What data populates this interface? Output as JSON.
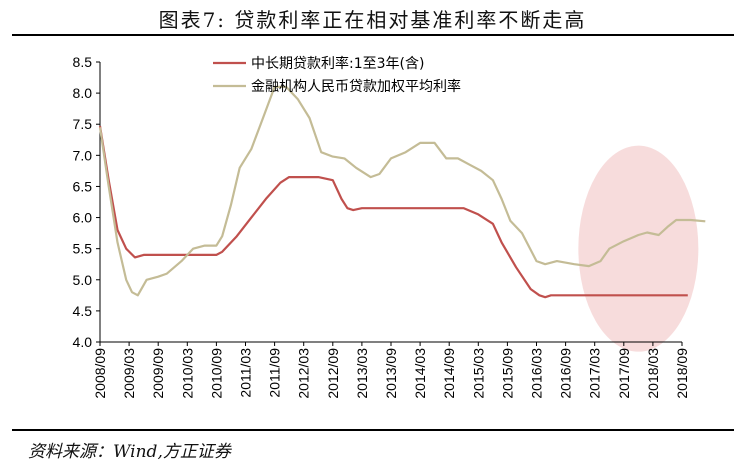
{
  "title": "图表7:  贷款利率正在相对基准利率不断走高",
  "source": "资料来源：Wind,方正证券",
  "chart_data": {
    "type": "line",
    "ylim": [
      4.0,
      8.5
    ],
    "yticks": [
      "8.5",
      "8.0",
      "7.5",
      "7.0",
      "6.5",
      "6.0",
      "5.5",
      "5.0",
      "4.5",
      "4.0"
    ],
    "xticks": [
      "2008/09",
      "2009/03",
      "2009/09",
      "2010/03",
      "2010/09",
      "2011/03",
      "2011/09",
      "2012/03",
      "2012/09",
      "2013/03",
      "2013/09",
      "2014/03",
      "2014/09",
      "2015/03",
      "2015/09",
      "2016/03",
      "2016/09",
      "2017/03",
      "2017/09",
      "2018/03",
      "2018/09"
    ],
    "legend_position": "top-center",
    "highlight": {
      "shape": "ellipse",
      "color": "#f6d6d6",
      "x_center": 18.5,
      "y_center": 5.5
    },
    "series": [
      {
        "name": "中长期贷款利率:1至3年(含)",
        "color": "#c0504d",
        "points": [
          [
            0,
            7.47
          ],
          [
            0.3,
            6.6
          ],
          [
            0.6,
            5.8
          ],
          [
            0.9,
            5.5
          ],
          [
            1.2,
            5.36
          ],
          [
            1.5,
            5.4
          ],
          [
            2,
            5.4
          ],
          [
            3,
            5.4
          ],
          [
            3.5,
            5.4
          ],
          [
            4,
            5.4
          ],
          [
            4.2,
            5.45
          ],
          [
            4.7,
            5.7
          ],
          [
            5.2,
            6.0
          ],
          [
            5.7,
            6.3
          ],
          [
            6.2,
            6.56
          ],
          [
            6.5,
            6.65
          ],
          [
            7,
            6.65
          ],
          [
            7.5,
            6.65
          ],
          [
            8,
            6.6
          ],
          [
            8.3,
            6.3
          ],
          [
            8.5,
            6.15
          ],
          [
            8.7,
            6.12
          ],
          [
            9,
            6.15
          ],
          [
            10,
            6.15
          ],
          [
            11,
            6.15
          ],
          [
            12,
            6.15
          ],
          [
            12.5,
            6.15
          ],
          [
            13,
            6.05
          ],
          [
            13.5,
            5.9
          ],
          [
            13.8,
            5.6
          ],
          [
            14.3,
            5.2
          ],
          [
            14.8,
            4.85
          ],
          [
            15.1,
            4.75
          ],
          [
            15.3,
            4.72
          ],
          [
            15.5,
            4.75
          ],
          [
            16,
            4.75
          ],
          [
            17,
            4.75
          ],
          [
            18,
            4.75
          ],
          [
            19,
            4.75
          ],
          [
            20,
            4.75
          ],
          [
            20.2,
            4.75
          ]
        ]
      },
      {
        "name": "金融机构人民币贷款加权平均利率",
        "color": "#c4bc96",
        "points": [
          [
            0,
            7.45
          ],
          [
            0.3,
            6.5
          ],
          [
            0.6,
            5.6
          ],
          [
            0.9,
            5.0
          ],
          [
            1.1,
            4.8
          ],
          [
            1.3,
            4.75
          ],
          [
            1.6,
            5.0
          ],
          [
            2,
            5.05
          ],
          [
            2.3,
            5.1
          ],
          [
            2.8,
            5.3
          ],
          [
            3.2,
            5.5
          ],
          [
            3.6,
            5.55
          ],
          [
            4,
            5.55
          ],
          [
            4.2,
            5.7
          ],
          [
            4.5,
            6.2
          ],
          [
            4.8,
            6.8
          ],
          [
            5.2,
            7.1
          ],
          [
            5.6,
            7.6
          ],
          [
            6,
            8.1
          ],
          [
            6.4,
            8.1
          ],
          [
            6.8,
            7.9
          ],
          [
            7.2,
            7.6
          ],
          [
            7.6,
            7.05
          ],
          [
            8,
            6.98
          ],
          [
            8.4,
            6.95
          ],
          [
            8.8,
            6.8
          ],
          [
            9.3,
            6.65
          ],
          [
            9.6,
            6.7
          ],
          [
            10,
            6.95
          ],
          [
            10.5,
            7.05
          ],
          [
            11,
            7.2
          ],
          [
            11.5,
            7.2
          ],
          [
            11.9,
            6.95
          ],
          [
            12.3,
            6.95
          ],
          [
            12.7,
            6.85
          ],
          [
            13.1,
            6.75
          ],
          [
            13.5,
            6.6
          ],
          [
            13.8,
            6.3
          ],
          [
            14.1,
            5.95
          ],
          [
            14.5,
            5.75
          ],
          [
            15,
            5.3
          ],
          [
            15.3,
            5.25
          ],
          [
            15.7,
            5.3
          ],
          [
            16.3,
            5.25
          ],
          [
            16.8,
            5.22
          ],
          [
            17.2,
            5.3
          ],
          [
            17.5,
            5.5
          ],
          [
            18,
            5.62
          ],
          [
            18.5,
            5.72
          ],
          [
            18.8,
            5.76
          ],
          [
            19.2,
            5.72
          ],
          [
            19.5,
            5.85
          ],
          [
            19.8,
            5.96
          ],
          [
            20.3,
            5.96
          ],
          [
            20.8,
            5.94
          ]
        ]
      }
    ]
  }
}
